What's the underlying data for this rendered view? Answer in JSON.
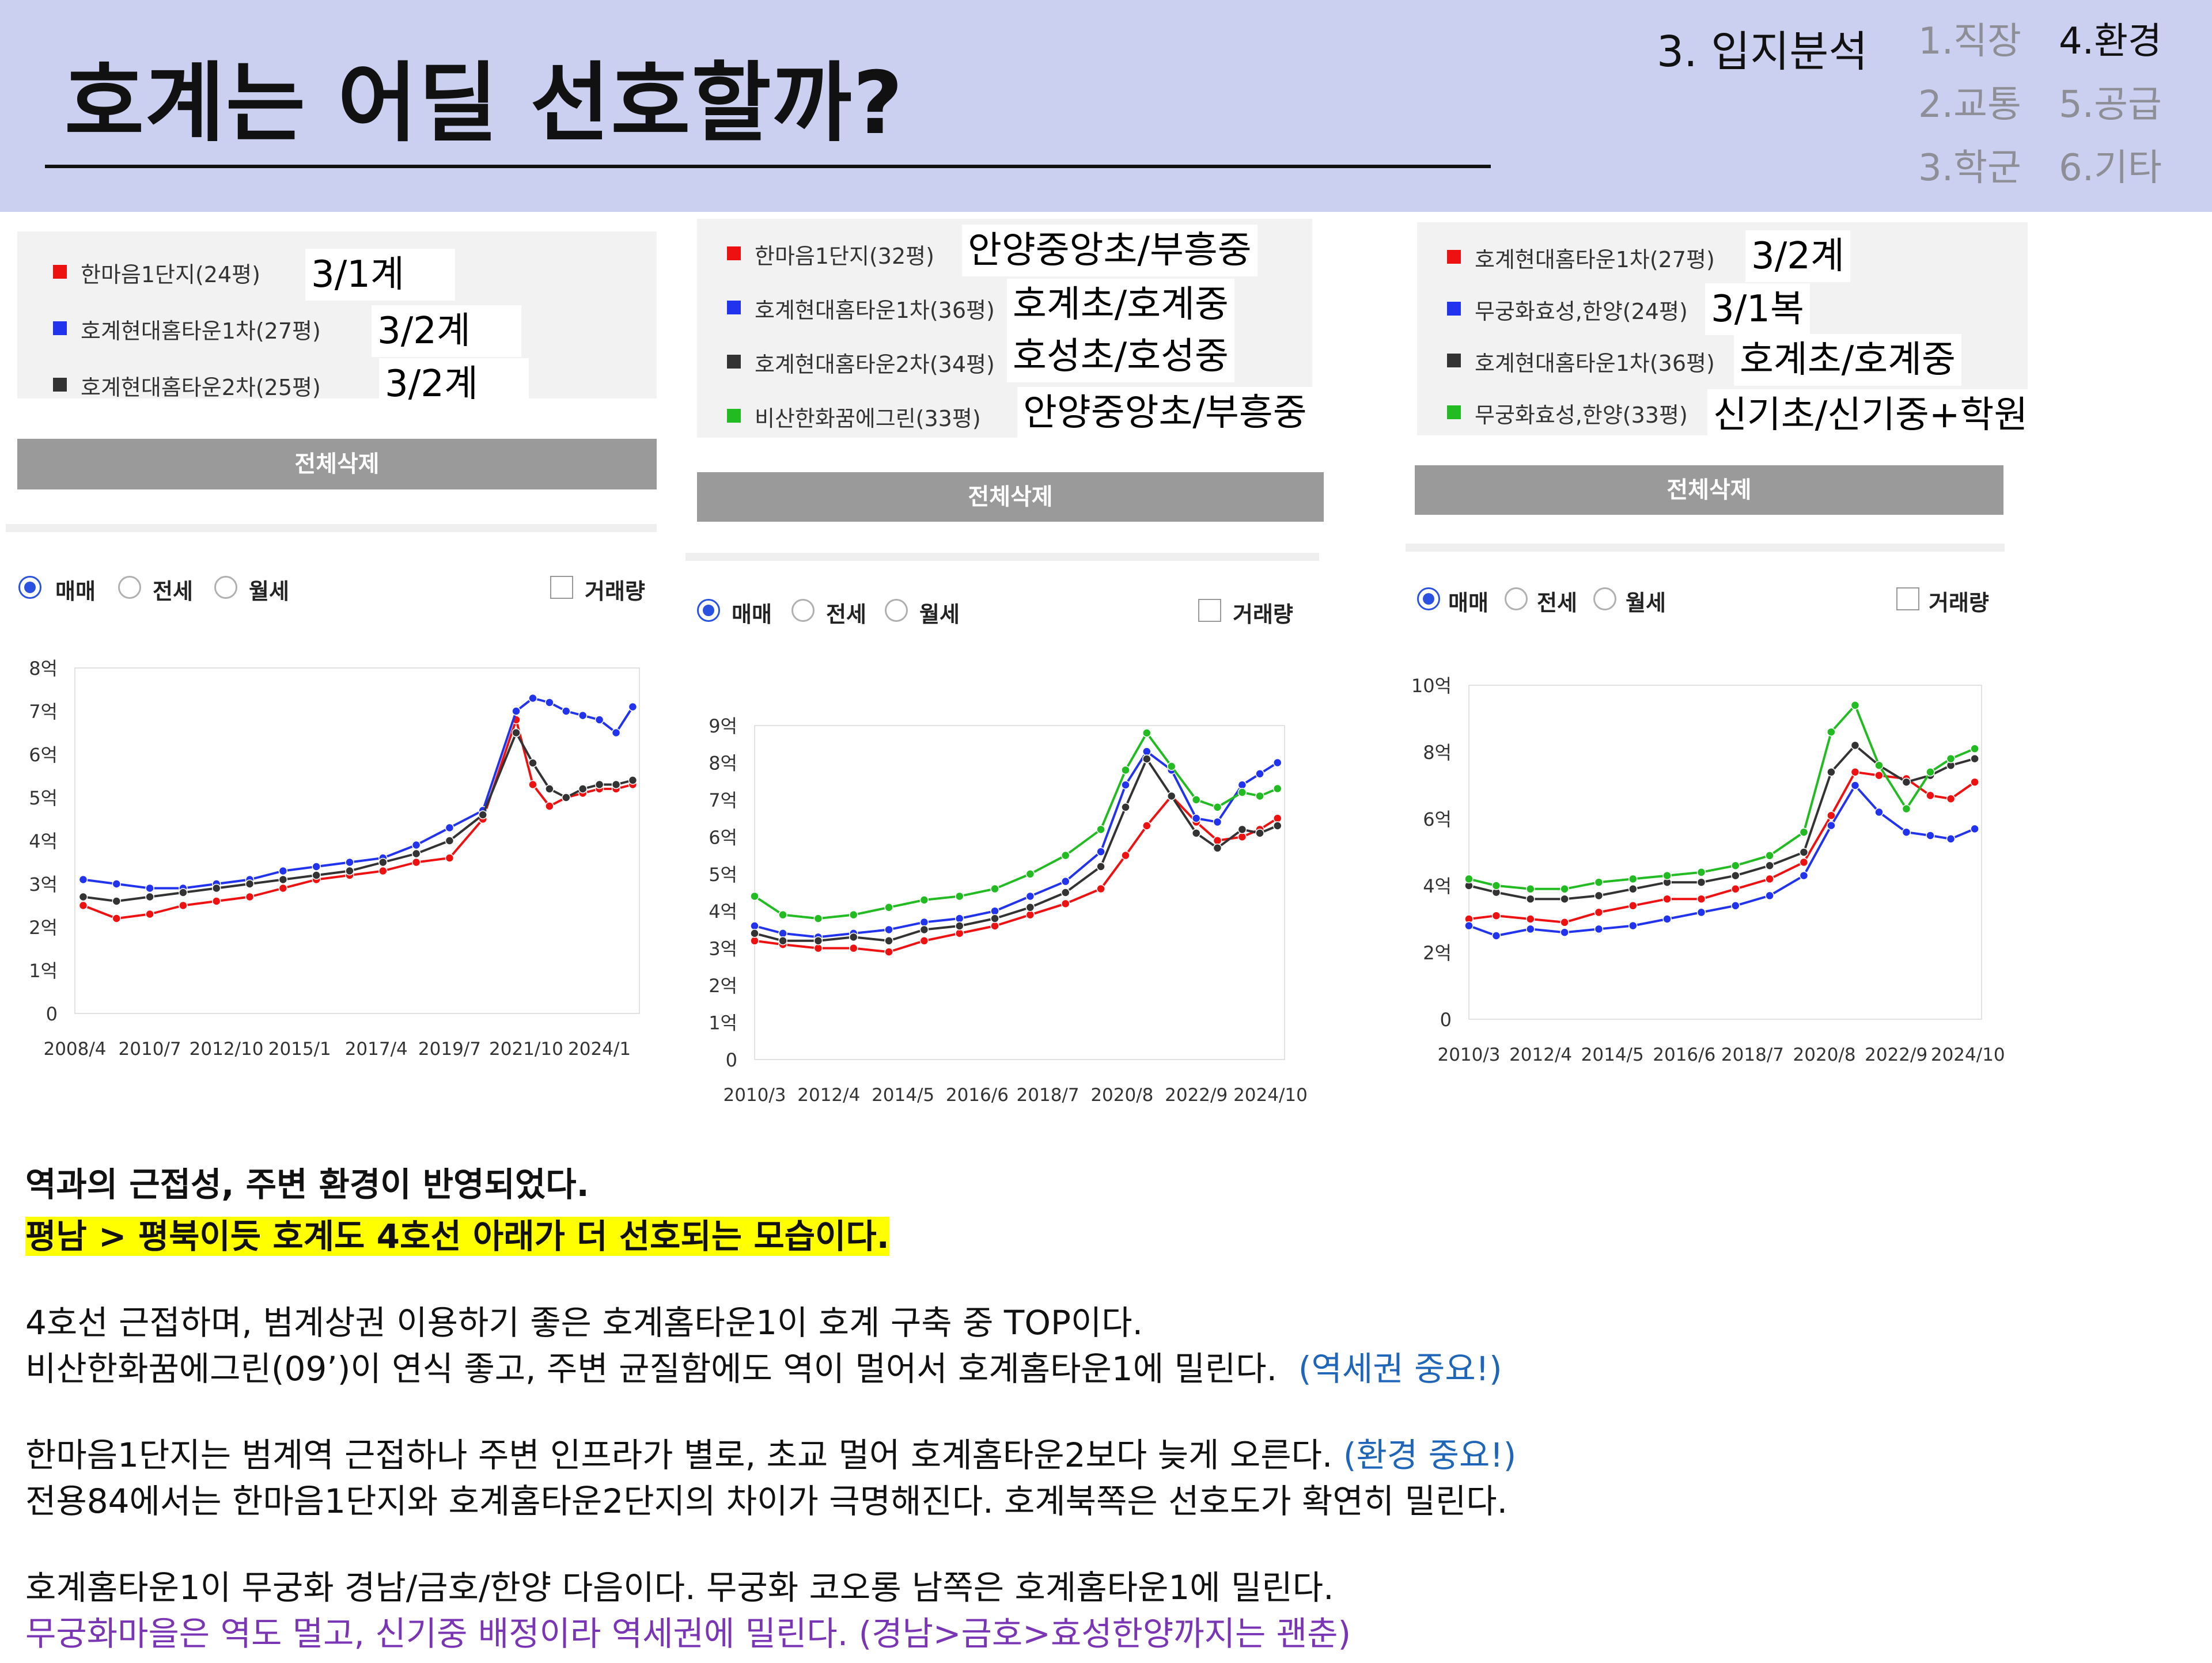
{
  "header": {
    "title": "호계는 어딜 선호할까?",
    "section": "3. 입지분석",
    "nav": [
      {
        "label": "1.직장",
        "active": false
      },
      {
        "label": "4.환경",
        "active": true
      },
      {
        "label": "2.교통",
        "active": false
      },
      {
        "label": "5.공급",
        "active": false
      },
      {
        "label": "3.학군",
        "active": false
      },
      {
        "label": "6.기타",
        "active": false
      }
    ]
  },
  "panels": [
    {
      "legend": [
        {
          "color": "#ee1111",
          "name": "한마음1단지(24평)",
          "note": "3/1계"
        },
        {
          "color": "#2233ee",
          "name": "호계현대홈타운1차(27평)",
          "note": "3/2계"
        },
        {
          "color": "#333333",
          "name": "호계현대홈타운2차(25평)",
          "note": "3/2계"
        }
      ],
      "delete_label": "전체삭제",
      "radios": [
        "매매",
        "전세",
        "월세"
      ],
      "selected_radio": "매매",
      "volume_label": "거래량"
    },
    {
      "legend": [
        {
          "color": "#ee1111",
          "name": "한마음1단지(32평)",
          "note": "안양중앙초/부흥중"
        },
        {
          "color": "#2233ee",
          "name": "호계현대홈타운1차(36평)",
          "note": "호계초/호계중"
        },
        {
          "color": "#333333",
          "name": "호계현대홈타운2차(34평)",
          "note": "호성초/호성중"
        },
        {
          "color": "#22bb22",
          "name": "비산한화꿈에그린(33평)",
          "note": "안양중앙초/부흥중"
        }
      ],
      "delete_label": "전체삭제",
      "radios": [
        "매매",
        "전세",
        "월세"
      ],
      "selected_radio": "매매",
      "volume_label": "거래량"
    },
    {
      "legend": [
        {
          "color": "#ee1111",
          "name": "호계현대홈타운1차(27평)",
          "note": "3/2계"
        },
        {
          "color": "#2233ee",
          "name": "무궁화효성,한양(24평)",
          "note": "3/1복"
        },
        {
          "color": "#333333",
          "name": "호계현대홈타운1차(36평)",
          "note": "호계초/호계중"
        },
        {
          "color": "#22bb22",
          "name": "무궁화효성,한양(33평)",
          "note": "신기초/신기중+학원"
        }
      ],
      "delete_label": "전체삭제",
      "radios": [
        "매매",
        "전세",
        "월세"
      ],
      "selected_radio": "매매",
      "volume_label": "거래량"
    }
  ],
  "chart_data": [
    {
      "type": "line",
      "x_ticks": [
        "2008/4",
        "2010/7",
        "2012/10",
        "2015/1",
        "2017/4",
        "2019/7",
        "2021/10",
        "2024/1"
      ],
      "y_ticks": [
        "0",
        "1억",
        "2억",
        "3억",
        "4억",
        "5억",
        "6억",
        "7억",
        "8억"
      ],
      "ylim": [
        0,
        8
      ],
      "unit": "억",
      "x": [
        2008.5,
        2009.5,
        2010.5,
        2011.5,
        2012.5,
        2013.5,
        2014.5,
        2015.5,
        2016.5,
        2017.5,
        2018.5,
        2019.5,
        2020.5,
        2021.5,
        2022.0,
        2022.5,
        2023.0,
        2023.5,
        2024.0,
        2024.5,
        2025.0
      ],
      "series": [
        {
          "color": "#ee1111",
          "values": [
            2.5,
            2.2,
            2.3,
            2.5,
            2.6,
            2.7,
            2.9,
            3.1,
            3.2,
            3.3,
            3.5,
            3.6,
            4.5,
            6.8,
            5.3,
            4.8,
            5.0,
            5.1,
            5.2,
            5.2,
            5.3
          ]
        },
        {
          "color": "#2233ee",
          "values": [
            3.1,
            3.0,
            2.9,
            2.9,
            3.0,
            3.1,
            3.3,
            3.4,
            3.5,
            3.6,
            3.9,
            4.3,
            4.7,
            7.0,
            7.3,
            7.2,
            7.0,
            6.9,
            6.8,
            6.5,
            7.1
          ]
        },
        {
          "color": "#333333",
          "values": [
            2.7,
            2.6,
            2.7,
            2.8,
            2.9,
            3.0,
            3.1,
            3.2,
            3.3,
            3.5,
            3.7,
            4.0,
            4.6,
            6.5,
            5.8,
            5.2,
            5.0,
            5.2,
            5.3,
            5.3,
            5.4
          ]
        }
      ]
    },
    {
      "type": "line",
      "x_ticks": [
        "2010/3",
        "2012/4",
        "2014/5",
        "2016/6",
        "2018/7",
        "2020/8",
        "2022/9",
        "2024/10"
      ],
      "y_ticks": [
        "0",
        "1억",
        "2억",
        "3억",
        "4억",
        "5억",
        "6억",
        "7억",
        "8억",
        "9억"
      ],
      "ylim": [
        0,
        9
      ],
      "unit": "억",
      "x": [
        2010.2,
        2011.0,
        2012.0,
        2013.0,
        2014.0,
        2015.0,
        2016.0,
        2017.0,
        2018.0,
        2019.0,
        2020.0,
        2020.7,
        2021.3,
        2022.0,
        2022.7,
        2023.3,
        2024.0,
        2024.5,
        2025.0
      ],
      "series": [
        {
          "color": "#ee1111",
          "values": [
            3.2,
            3.1,
            3.0,
            3.0,
            2.9,
            3.2,
            3.4,
            3.6,
            3.9,
            4.2,
            4.6,
            5.5,
            6.3,
            7.1,
            6.4,
            5.9,
            6.0,
            6.2,
            6.5
          ]
        },
        {
          "color": "#2233ee",
          "values": [
            3.6,
            3.4,
            3.3,
            3.4,
            3.5,
            3.7,
            3.8,
            4.0,
            4.4,
            4.8,
            5.6,
            7.4,
            8.3,
            7.8,
            6.5,
            6.4,
            7.4,
            7.7,
            8.0
          ]
        },
        {
          "color": "#333333",
          "values": [
            3.4,
            3.2,
            3.2,
            3.3,
            3.2,
            3.5,
            3.6,
            3.8,
            4.1,
            4.5,
            5.2,
            6.8,
            8.1,
            7.1,
            6.1,
            5.7,
            6.2,
            6.1,
            6.3
          ]
        },
        {
          "color": "#22bb22",
          "values": [
            4.4,
            3.9,
            3.8,
            3.9,
            4.1,
            4.3,
            4.4,
            4.6,
            5.0,
            5.5,
            6.2,
            7.8,
            8.8,
            7.9,
            7.0,
            6.8,
            7.2,
            7.1,
            7.3
          ]
        }
      ]
    },
    {
      "type": "line",
      "x_ticks": [
        "2010/3",
        "2012/4",
        "2014/5",
        "2016/6",
        "2018/7",
        "2020/8",
        "2022/9",
        "2024/10"
      ],
      "y_ticks": [
        "0",
        "2억",
        "4억",
        "6억",
        "8억",
        "10억"
      ],
      "ylim": [
        0,
        10
      ],
      "unit": "억",
      "x": [
        2010.2,
        2011.0,
        2012.0,
        2013.0,
        2014.0,
        2015.0,
        2016.0,
        2017.0,
        2018.0,
        2019.0,
        2020.0,
        2020.8,
        2021.5,
        2022.2,
        2023.0,
        2023.7,
        2024.3,
        2025.0
      ],
      "series": [
        {
          "color": "#ee1111",
          "values": [
            3.0,
            3.1,
            3.0,
            2.9,
            3.2,
            3.4,
            3.6,
            3.6,
            3.9,
            4.2,
            4.7,
            6.1,
            7.4,
            7.3,
            7.2,
            6.7,
            6.6,
            7.1
          ]
        },
        {
          "color": "#2233ee",
          "values": [
            2.8,
            2.5,
            2.7,
            2.6,
            2.7,
            2.8,
            3.0,
            3.2,
            3.4,
            3.7,
            4.3,
            5.8,
            7.0,
            6.2,
            5.6,
            5.5,
            5.4,
            5.7
          ]
        },
        {
          "color": "#333333",
          "values": [
            4.0,
            3.8,
            3.6,
            3.6,
            3.7,
            3.9,
            4.1,
            4.1,
            4.3,
            4.6,
            5.0,
            7.4,
            8.2,
            7.6,
            7.1,
            7.3,
            7.6,
            7.8
          ]
        },
        {
          "color": "#22bb22",
          "values": [
            4.2,
            4.0,
            3.9,
            3.9,
            4.1,
            4.2,
            4.3,
            4.4,
            4.6,
            4.9,
            5.6,
            8.6,
            9.4,
            7.6,
            6.3,
            7.4,
            7.8,
            8.1
          ]
        }
      ]
    }
  ],
  "text": {
    "l1": "역과의 근접성, 주변 환경이 반영되었다.",
    "l2": "평남 > 평북이듯 호계도 4호선 아래가 더 선호되는 모습이다.",
    "l3": "4호선 근접하며, 범계상권 이용하기 좋은 호계홈타운1이 호계 구축 중 TOP이다.",
    "l4": "비산한화꿈에그린(09’)이 연식 좋고, 주변 균질함에도 역이 멀어서 호계홈타운1에 밀린다.",
    "l4_note": "(역세권 중요!)",
    "l5": "한마음1단지는 범계역 근접하나 주변 인프라가 별로, 초교 멀어 호계홈타운2보다 늦게 오른다.",
    "l5_note": "(환경 중요!)",
    "l6": "전용84에서는 한마음1단지와 호계홈타운2단지의 차이가 극명해진다. 호계북쪽은 선호도가 확연히 밀린다.",
    "l7": "호계홈타운1이 무궁화 경남/금호/한양 다음이다. 무궁화 코오롱 남쪽은 호계홈타운1에 밀린다.",
    "l8": "무궁화마을은 역도 멀고, 신기중 배정이라 역세권에 밀린다. (경남>금호>효성한양까지는 괜춘)"
  }
}
